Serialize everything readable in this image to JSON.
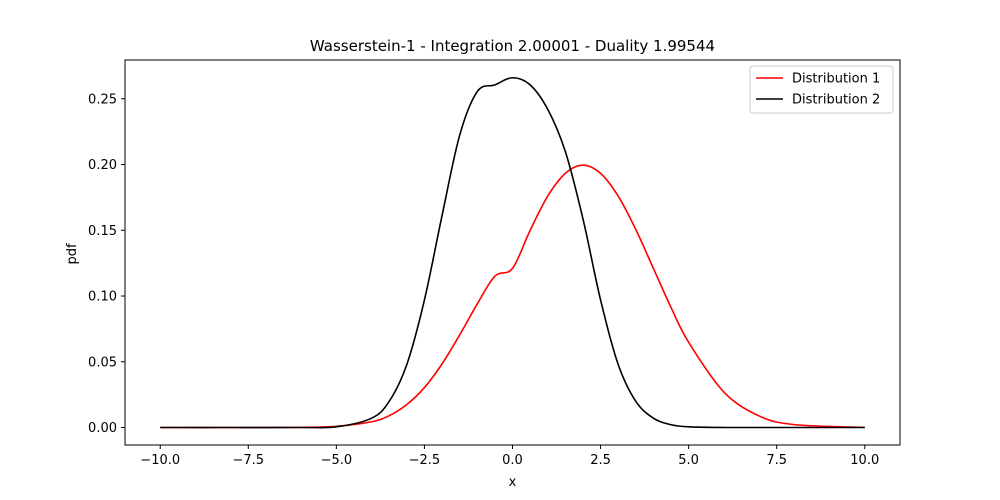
{
  "chart_data": {
    "type": "line",
    "title": "Wasserstein-1 - Integration 2.00001 - Duality 1.99544",
    "xlabel": "x",
    "ylabel": "pdf",
    "xlim": [
      -11.0,
      11.0
    ],
    "ylim": [
      -0.0133,
      0.2795
    ],
    "xticks": [
      -10.0,
      -7.5,
      -5.0,
      -2.5,
      0.0,
      2.5,
      5.0,
      7.5,
      10.0
    ],
    "xtick_labels": [
      "−10.0",
      "−7.5",
      "−5.0",
      "−2.5",
      "0.0",
      "2.5",
      "5.0",
      "7.5",
      "10.0"
    ],
    "yticks": [
      0.0,
      0.05,
      0.1,
      0.15,
      0.2,
      0.25
    ],
    "ytick_labels": [
      "0.00",
      "0.05",
      "0.10",
      "0.15",
      "0.20",
      "0.25"
    ],
    "grid": false,
    "legend_position": "top-right",
    "x": [
      -10,
      -8,
      -6,
      -5,
      -4,
      -3.5,
      -3,
      -2.5,
      -2,
      -1.5,
      -1,
      -0.5,
      0,
      0.5,
      1,
      1.5,
      2,
      2.5,
      3,
      3.5,
      4,
      4.5,
      5,
      6,
      7,
      8,
      10
    ],
    "series": [
      {
        "name": "Distribution 1",
        "color": "#ff0000",
        "values": [
          0.0,
          0.0,
          0.0001,
          0.0009,
          0.0044,
          0.009,
          0.0175,
          0.0304,
          0.0484,
          0.0704,
          0.094,
          0.1151,
          0.121,
          0.1499,
          0.176,
          0.1933,
          0.1995,
          0.1933,
          0.176,
          0.1506,
          0.121,
          0.0913,
          0.0648,
          0.027,
          0.0088,
          0.0022,
          0.0001
        ]
      },
      {
        "name": "Distribution 2",
        "color": "#000000",
        "values": [
          0.0,
          0.0,
          0.0,
          0.0005,
          0.0071,
          0.0199,
          0.0479,
          0.097,
          0.1612,
          0.2222,
          0.2555,
          0.2606,
          0.266,
          0.2606,
          0.242,
          0.2099,
          0.1587,
          0.097,
          0.0479,
          0.0199,
          0.0071,
          0.0021,
          0.0005,
          0.0,
          0.0,
          0.0,
          0.0
        ]
      }
    ]
  }
}
